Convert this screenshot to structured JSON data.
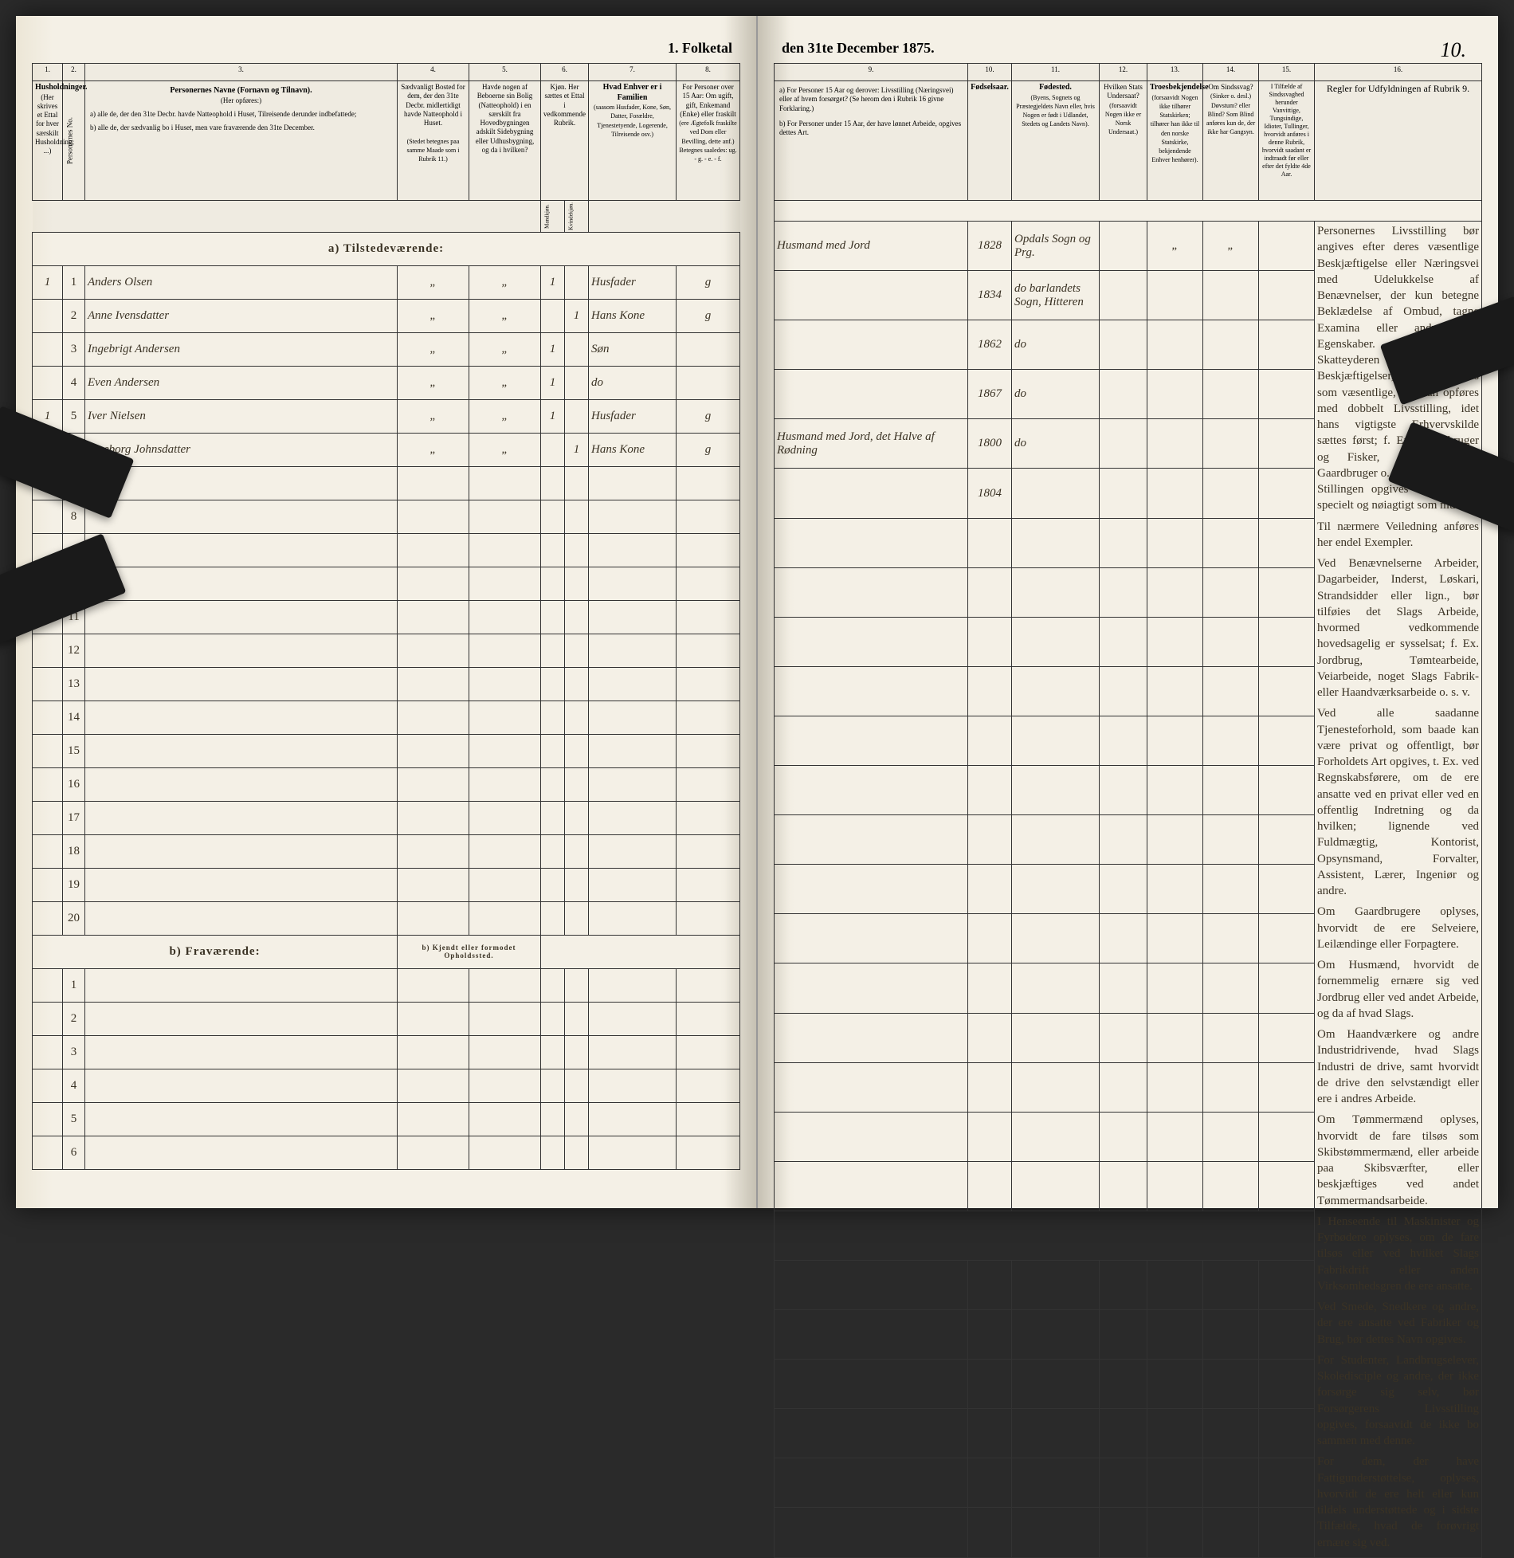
{
  "header": {
    "title_left": "1. Folketal",
    "title_right": "den 31te December 1875.",
    "page_number": "10."
  },
  "columns_left": {
    "c1": "1.",
    "c2": "2.",
    "c3": "3.",
    "c4": "4.",
    "c5": "5.",
    "c6": "6.",
    "c7": "7.",
    "c8": "8.",
    "h1": "Husholdninger.",
    "h1b": "(Her skrives et Ettal for hver særskilt Husholdning; ...)",
    "h2": "Personernes No.",
    "h3": "Personernes Navne (Fornavn og Tilnavn).",
    "h3a": "(Her opføres:)",
    "h3b": "a) alle de, der den 31te Decbr. havde Natteophold i Huset, Tilreisende derunder indbefattede;",
    "h3c": "b) alle de, der sædvanlig bo i Huset, men vare fraværende den 31te December.",
    "h4": "Sædvanligt Bosted for dem, der den 31te Decbr. midlertidigt havde Natteophold i Huset.",
    "h4b": "(Stedet betegnes paa samme Maade som i Rubrik 11.)",
    "h5": "Havde nogen af Beboerne sin Bolig (Natteophold) i en særskilt fra Hovedbygningen adskilt Sidebygning eller Udhusbygning, og da i hvilken?",
    "h6": "Kjøn. Her sættes et Ettal i vedkommende Rubrik.",
    "h6a": "Mandkjøn.",
    "h6b": "Kvindekjøn.",
    "h7": "Hvad Enhver er i Familien",
    "h7b": "(saasom Husfader, Kone, Søn, Datter, Forældre, Tjenestetyende, Logerende, Tilreisende osv.)",
    "h8": "For Personer over 15 Aar: Om ugift, gift, Enkemand (Enke) eller fraskilt",
    "h8b": "(ere Ægtefolk fraskilte ved Dom eller Bevilling, dette anf.) Betegnes saaledes: ug. - g. - e. - f."
  },
  "columns_right": {
    "c9": "9.",
    "c10": "10.",
    "c11": "11.",
    "c12": "12.",
    "c13": "13.",
    "c14": "14.",
    "c15": "15.",
    "c16": "16.",
    "h9": "a) For Personer 15 Aar og derover: Livsstilling (Næringsvei) eller af hvem forsørget? (Se herom den i Rubrik 16 givne Forklaring.)",
    "h9b": "b) For Personer under 15 Aar, der have lønnet Arbeide, opgives dettes Art.",
    "h10": "Fødselsaar.",
    "h11": "Fødested.",
    "h11b": "(Byens, Sognets og Præstegjeldets Navn eller, hvis Nogen er født i Udlandet, Stedets og Landets Navn).",
    "h12": "Hvilken Stats Undersaat?",
    "h12b": "(forsaavidt Nogen ikke er Norsk Undersaat.)",
    "h13": "Troesbekjendelse",
    "h13b": "(forsaavidt Nogen ikke tilhører Statskirken; tilhører han ikke til den norske Statskirke, bekjendende Enhver henhører).",
    "h14": "Om Sindssvag?",
    "h14b": "(Sinker o. desl.) Døvstum? eller Blind? Som Blind anføres kun de, der ikke har Gangsyn.",
    "h15": "I Tilfælde af Sindssvaghed herunder Vanvittige, Tungsindige, Idioter, Tullinger, hvorvidt anføres i denne Rubrik, hvorvidt saadant er indtraadt før eller efter det fyldte 4de Aar.",
    "h16": "Regler for Udfyldningen af Rubrik 9."
  },
  "sections": {
    "a": "a) Tilstedeværende:",
    "b": "b) Fraværende:",
    "b_col4": "b) Kjendt eller formodet Opholdssted."
  },
  "rows": [
    {
      "hh": "1",
      "n": "1",
      "name": "Anders Olsen",
      "c4": "„",
      "c5": "„",
      "m": "1",
      "k": "",
      "rel": "Husfader",
      "ms": "g",
      "occ": "Husmand med Jord",
      "yr": "1828",
      "bp": "Opdals Sogn og Prg.",
      "st": "",
      "tr": "„",
      "ss": "„"
    },
    {
      "hh": "",
      "n": "2",
      "name": "Anne Ivensdatter",
      "c4": "„",
      "c5": "„",
      "m": "",
      "k": "1",
      "rel": "Hans Kone",
      "ms": "g",
      "occ": "",
      "yr": "1834",
      "bp": "do barlandets Sogn, Hitteren",
      "st": "",
      "tr": "",
      "ss": ""
    },
    {
      "hh": "",
      "n": "3",
      "name": "Ingebrigt Andersen",
      "c4": "„",
      "c5": "„",
      "m": "1",
      "k": "",
      "rel": "Søn",
      "ms": "",
      "occ": "",
      "yr": "1862",
      "bp": "do",
      "st": "",
      "tr": "",
      "ss": ""
    },
    {
      "hh": "",
      "n": "4",
      "name": "Even Andersen",
      "c4": "„",
      "c5": "„",
      "m": "1",
      "k": "",
      "rel": "do",
      "ms": "",
      "occ": "",
      "yr": "1867",
      "bp": "do",
      "st": "",
      "tr": "",
      "ss": ""
    },
    {
      "hh": "1",
      "n": "5",
      "name": "Iver Nielsen",
      "c4": "„",
      "c5": "„",
      "m": "1",
      "k": "",
      "rel": "Husfader",
      "ms": "g",
      "occ": "Husmand med Jord, det Halve af Rødning",
      "yr": "1800",
      "bp": "do",
      "st": "",
      "tr": "",
      "ss": ""
    },
    {
      "hh": "",
      "n": "6",
      "name": "Ingeborg Johnsdatter",
      "c4": "„",
      "c5": "„",
      "m": "",
      "k": "1",
      "rel": "Hans Kone",
      "ms": "g",
      "occ": "",
      "yr": "1804",
      "bp": "",
      "st": "",
      "tr": "",
      "ss": ""
    }
  ],
  "instructions": {
    "p1": "Personernes Livsstilling bør angives efter deres væsentlige Beskjæftigelse eller Næringsvei med Udelukkelse af Benævnelser, der kun betegne Beklædelse af Ombud, tagne Examina eller andre ydre Egenskaber. Forener Skatteyderen flere Beskjæftigelser, der kunne ansees som væsentlige, bør han opføres med dobbelt Livsstilling, idet hans vigtigste Erhvervskilde sættes først; f. Ex. Gaardbruger og Fisker, Skibsreder og Gaardbruger o. s. v. Forøvrigt bør Stillingen opgives saa bestemt, specielt og nøiagtigt som muligt.",
    "p2": "Til nærmere Veiledning anføres her endel Exempler.",
    "p3": "Ved Benævnelserne Arbeider, Dagarbeider, Inderst, Løskari, Strandsidder eller lign., bør tilføies det Slags Arbeide, hvormed vedkommende hovedsagelig er sysselsat; f. Ex. Jordbrug, Tømtearbeide, Veiarbeide, noget Slags Fabrik- eller Haandværksarbeide o. s. v.",
    "p4": "Ved alle saadanne Tjenesteforhold, som baade kan være privat og offentligt, bør Forholdets Art opgives, t. Ex. ved Regnskabsførere, om de ere ansatte ved en privat eller ved en offentlig Indretning og da hvilken; lignende ved Fuldmægtig, Kontorist, Opsynsmand, Forvalter, Assistent, Lærer, Ingeniør og andre.",
    "p5": "Om Gaardbrugere oplyses, hvorvidt de ere Selveiere, Leilændinge eller Forpagtere.",
    "p6": "Om Husmænd, hvorvidt de fornemmelig ernære sig ved Jordbrug eller ved andet Arbeide, og da af hvad Slags.",
    "p7": "Om Haandværkere og andre Industridrivende, hvad Slags Industri de drive, samt hvorvidt de drive den selvstændigt eller ere i andres Arbeide.",
    "p8": "Om Tømmermænd oplyses, hvorvidt de fare tilsøs som Skibstømmermænd, eller arbeide paa Skibsværfter, eller beskjæftiges ved andet Tømmermandsarbeide.",
    "p9": "I Henseende til Maskinister og Fyrbødere oplyses, om de fare tilsøs eller ved hvilket Slags Fabrikdrift eller anden Virksomhedsgren de ere ansatte.",
    "p10": "Ved Smede, Snedkere og andre, der ere ansatte ved Fabriker og Brug, bør dettes Navn opgives.",
    "p11": "For Studenter, Landbrugselever, Skoledisciple og andre, der ikke forsørge sig selv, bør Forsørgerens Livsstilling opgives, forsaavidt de ikke bo sammen med denne.",
    "p12": "For dem, der have Fattigunderstøttelse, oplyses, hvorvidt de ere helt eller kun tildels understøttede og i sidste Tilfælde, hvad de forøvrigt ernære sig ved."
  }
}
